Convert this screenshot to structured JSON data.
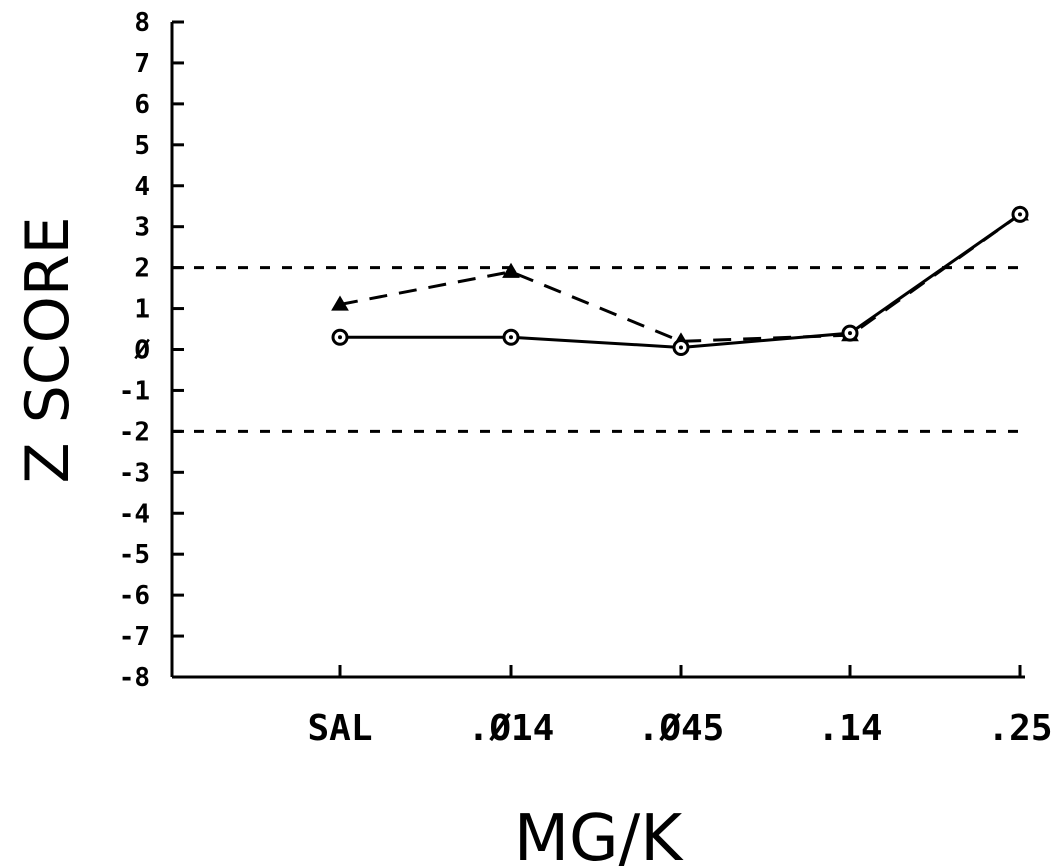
{
  "chart_data": {
    "type": "line",
    "title": "",
    "xlabel": "MG/K",
    "ylabel": "Z SCORE",
    "categories": [
      "SAL",
      ".Ø14",
      ".Ø45",
      ".14",
      ".25"
    ],
    "y_ticks": [
      "8",
      "7",
      "6",
      "5",
      "4",
      "3",
      "2",
      "1",
      "Ø",
      "-1",
      "-2",
      "-3",
      "-4",
      "-5",
      "-6",
      "-7",
      "-8"
    ],
    "ylim": [
      -8,
      8
    ],
    "grid": false,
    "reference_lines": [
      2,
      -2
    ],
    "series": [
      {
        "marker": "circle",
        "line_style": "solid",
        "values": [
          0.3,
          0.3,
          0.05,
          0.4,
          3.3
        ]
      },
      {
        "marker": "triangle",
        "line_style": "dashed",
        "values": [
          1.1,
          1.9,
          0.2,
          0.35,
          3.3
        ]
      }
    ]
  }
}
